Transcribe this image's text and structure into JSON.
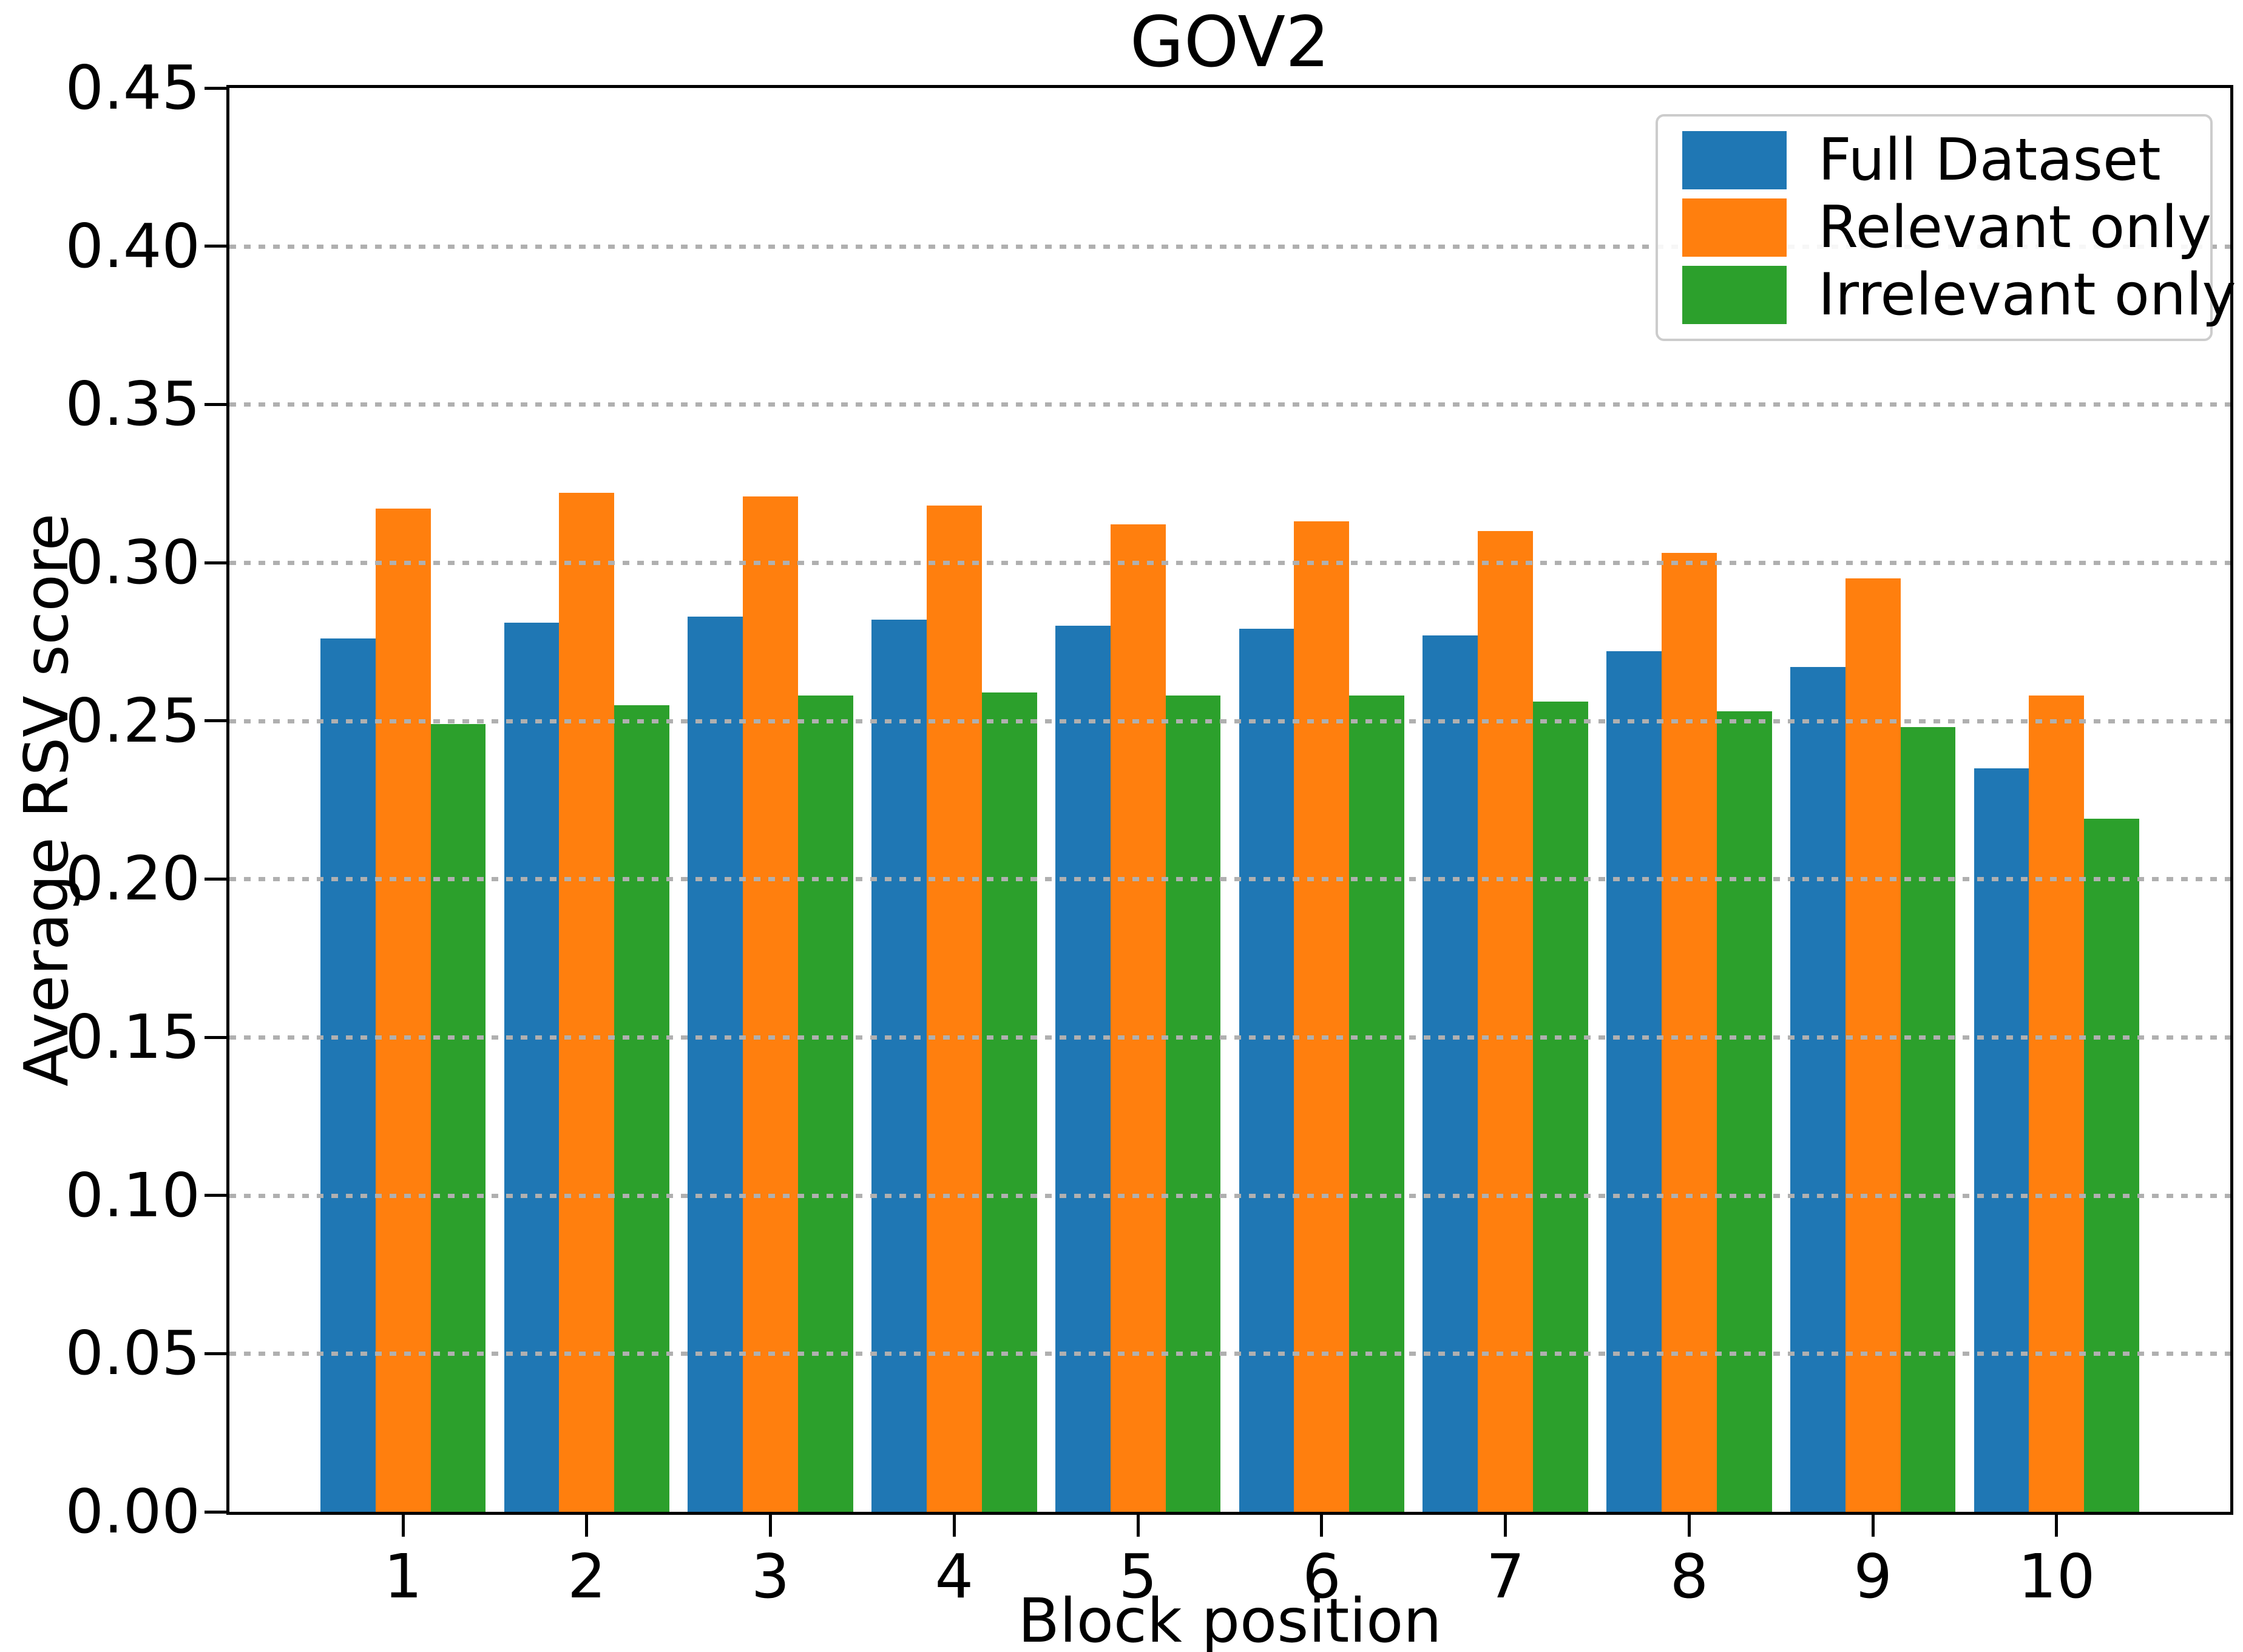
{
  "figure": {
    "background": "#ffffff",
    "spine_color": "#000000"
  },
  "chart_data": {
    "type": "bar",
    "title": "GOV2",
    "xlabel": "Block position",
    "ylabel": "Average RSV score",
    "categories": [
      1,
      2,
      3,
      4,
      5,
      6,
      7,
      8,
      9,
      10
    ],
    "xtick_labels": [
      "1",
      "2",
      "3",
      "4",
      "5",
      "6",
      "7",
      "8",
      "9",
      "10"
    ],
    "series": [
      {
        "name": "Full Dataset",
        "color": "#1f77b4",
        "values": [
          0.276,
          0.281,
          0.283,
          0.282,
          0.28,
          0.279,
          0.277,
          0.272,
          0.267,
          0.235
        ]
      },
      {
        "name": "Relevant only",
        "color": "#ff7f0e",
        "values": [
          0.317,
          0.322,
          0.321,
          0.318,
          0.312,
          0.313,
          0.31,
          0.303,
          0.295,
          0.258
        ]
      },
      {
        "name": "Irrelevant only",
        "color": "#2ca02c",
        "values": [
          0.249,
          0.255,
          0.258,
          0.259,
          0.258,
          0.258,
          0.256,
          0.253,
          0.248,
          0.219
        ]
      }
    ],
    "ylim": [
      0.0,
      0.45
    ],
    "yticks": [
      0.0,
      0.05,
      0.1,
      0.15,
      0.2,
      0.25,
      0.3,
      0.35,
      0.4,
      0.45
    ],
    "ytick_labels": [
      "0.00",
      "0.05",
      "0.10",
      "0.15",
      "0.20",
      "0.25",
      "0.30",
      "0.35",
      "0.40",
      "0.45"
    ],
    "grid": {
      "axis": "y",
      "style": "dotted",
      "color": "#b0b0b0",
      "drawn_above_bars": true
    },
    "legend": {
      "position": "upper right",
      "labels": [
        "Full Dataset",
        "Relevant only",
        "Irrelevant only"
      ]
    },
    "bar_group_width": 0.9
  }
}
